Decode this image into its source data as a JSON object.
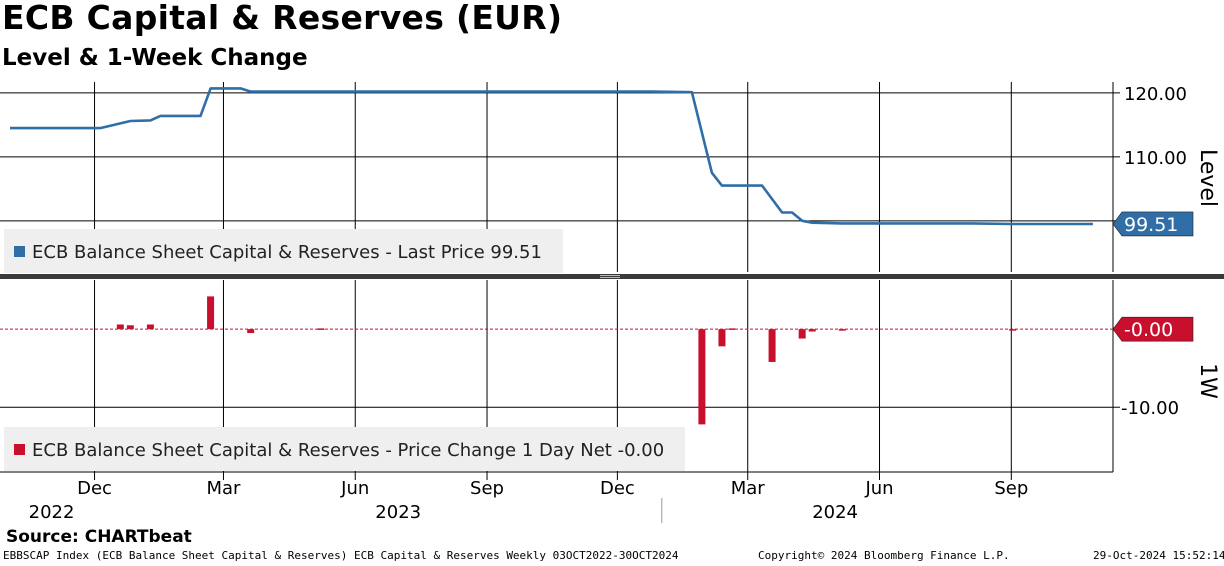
{
  "header": {
    "title": "ECB Capital & Reserves (EUR)",
    "subtitle": "Level & 1-Week Change"
  },
  "source": "Source: CHARTbeat",
  "footer": {
    "left": "EBBSCAP Index (ECB Balance Sheet Capital & Reserves) ECB Capital & Reserves  Weekly 03OCT2022-30OCT2024",
    "center": "Copyright© 2024 Bloomberg Finance L.P.",
    "right": "29-Oct-2024 15:52:14"
  },
  "colors": {
    "level_line": "#2f6ea6",
    "change_bar": "#c8102e",
    "grid": "#000000",
    "legend_bg": "#efefef",
    "divider": "#3a3a3a"
  },
  "chart_data": [
    {
      "type": "line",
      "name": "level",
      "axis_label": "Level",
      "series": [
        {
          "name": "ECB Balance Sheet Capital & Reserves",
          "legend": "ECB Balance Sheet Capital & Reserves - Last Price 99.51",
          "last_value_label": "99.51",
          "points": [
            [
              "2022-10-03",
              114.5
            ],
            [
              "2022-12-05",
              114.5
            ],
            [
              "2022-12-26",
              115.6
            ],
            [
              "2023-01-09",
              115.7
            ],
            [
              "2023-01-16",
              116.4
            ],
            [
              "2023-02-13",
              116.4
            ],
            [
              "2023-02-20",
              120.7
            ],
            [
              "2023-03-13",
              120.7
            ],
            [
              "2023-03-20",
              120.2
            ],
            [
              "2023-11-27",
              120.2
            ],
            [
              "2023-12-25",
              120.2
            ],
            [
              "2024-01-22",
              120.1
            ],
            [
              "2024-02-05",
              107.5
            ],
            [
              "2024-02-12",
              105.5
            ],
            [
              "2024-02-26",
              105.5
            ],
            [
              "2024-03-11",
              105.5
            ],
            [
              "2024-03-25",
              101.3
            ],
            [
              "2024-04-01",
              101.3
            ],
            [
              "2024-04-08",
              100.0
            ],
            [
              "2024-04-15",
              99.7
            ],
            [
              "2024-05-06",
              99.6
            ],
            [
              "2024-08-05",
              99.6
            ],
            [
              "2024-09-02",
              99.5
            ],
            [
              "2024-10-28",
              99.51
            ]
          ]
        }
      ],
      "y_ticks": [
        {
          "value": 100,
          "label": ""
        },
        {
          "value": 110,
          "label": "110.00"
        },
        {
          "value": 120,
          "label": "120.00"
        }
      ],
      "ylim": [
        92.0,
        121.7
      ]
    },
    {
      "type": "bar",
      "name": "change",
      "axis_label": "1W",
      "series": [
        {
          "name": "ECB Balance Sheet Capital & Reserves",
          "legend": "ECB Balance Sheet Capital & Reserves - Price Change 1 Day Net -0.00",
          "last_value_label": "-0.00",
          "points": [
            [
              "2022-12-19",
              0.6
            ],
            [
              "2022-12-26",
              0.5
            ],
            [
              "2023-01-09",
              0.6
            ],
            [
              "2023-02-20",
              4.2
            ],
            [
              "2023-03-20",
              -0.5
            ],
            [
              "2023-05-08",
              0.1
            ],
            [
              "2024-01-29",
              -12.2
            ],
            [
              "2024-02-12",
              -2.2
            ],
            [
              "2024-02-19",
              0.1
            ],
            [
              "2024-03-18",
              -4.2
            ],
            [
              "2024-04-08",
              -1.2
            ],
            [
              "2024-04-15",
              -0.3
            ],
            [
              "2024-05-06",
              -0.1
            ],
            [
              "2024-09-02",
              -0.1
            ]
          ]
        }
      ],
      "y_ticks": [
        {
          "value": 0,
          "label": ""
        },
        {
          "value": -10,
          "label": "-10.00"
        }
      ],
      "ylim": [
        -18.3,
        6.3
      ]
    }
  ],
  "x_axis": {
    "range": [
      "2022-09-26",
      "2024-11-11"
    ],
    "month_ticks": [
      {
        "date": "2022-12-01",
        "label": "Dec"
      },
      {
        "date": "2023-03-01",
        "label": "Mar"
      },
      {
        "date": "2023-06-01",
        "label": "Jun"
      },
      {
        "date": "2023-09-01",
        "label": "Sep"
      },
      {
        "date": "2023-12-01",
        "label": "Dec"
      },
      {
        "date": "2024-03-01",
        "label": "Mar"
      },
      {
        "date": "2024-06-01",
        "label": "Jun"
      },
      {
        "date": "2024-09-01",
        "label": "Sep"
      }
    ],
    "year_labels": [
      {
        "center": "2022-11-01",
        "label": "2022"
      },
      {
        "center": "2023-07-01",
        "label": "2023"
      },
      {
        "center": "2024-05-01",
        "label": "2024"
      }
    ],
    "year_separators": [
      "2024-01-01"
    ]
  }
}
